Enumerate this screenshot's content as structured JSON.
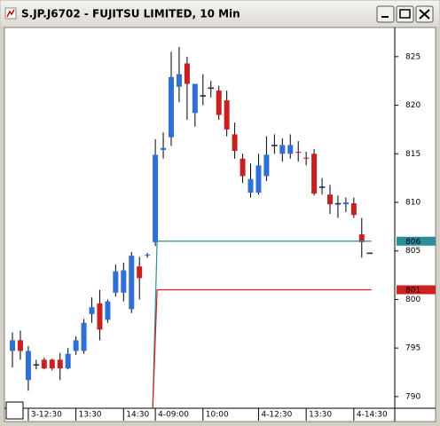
{
  "chart_data": {
    "type": "candlestick",
    "title": "S.JP.J6702 - FUJITSU LIMITED, 10 Min",
    "categories": [
      null,
      null,
      "3-12:30",
      null,
      null,
      null,
      null,
      null,
      "13:30",
      null,
      null,
      null,
      null,
      null,
      "14:30",
      null,
      null,
      null,
      "4-09:00",
      null,
      null,
      null,
      null,
      null,
      "10:00",
      null,
      null,
      null,
      null,
      null,
      null,
      "4-12:30",
      null,
      null,
      null,
      null,
      null,
      "13:30",
      null,
      null,
      null,
      null,
      null,
      "4-14:30",
      null,
      null
    ],
    "open": [
      794.7,
      795.8,
      791.7,
      793.3,
      793.8,
      793.8,
      793.8,
      792.9,
      794.7,
      794.7,
      798.5,
      799.6,
      797.9,
      800.7,
      800.7,
      799.0,
      803.4,
      804.5,
      805.9,
      815.4,
      816.7,
      821.9,
      824.3,
      819.2,
      821.0,
      821.8,
      821.5,
      820.5,
      817.0,
      814.5,
      811.0,
      811.0,
      812.7,
      815.9,
      815.0,
      815.0,
      815.2,
      814.6,
      815.0,
      811.6,
      810.8,
      809.9,
      809.8,
      809.9,
      806.7,
      804.8
    ],
    "high": [
      796.6,
      796.8,
      795.2,
      793.8,
      794.0,
      793.9,
      794.5,
      795.0,
      796.2,
      798.0,
      800.2,
      801.0,
      800.0,
      803.6,
      803.8,
      804.9,
      804.4,
      804.8,
      816.5,
      817.2,
      825.5,
      826.0,
      825.0,
      822.2,
      823.2,
      822.5,
      822.0,
      821.5,
      818.2,
      815.0,
      814.0,
      815.0,
      816.8,
      817.0,
      816.6,
      817.0,
      816.3,
      815.2,
      815.5,
      812.5,
      811.8,
      810.7,
      810.5,
      810.5,
      808.4,
      804.8
    ],
    "low": [
      793.0,
      793.8,
      790.6,
      792.8,
      792.8,
      792.7,
      791.7,
      792.8,
      794.3,
      794.4,
      797.6,
      795.8,
      797.6,
      800.3,
      799.8,
      798.6,
      800.0,
      804.3,
      805.5,
      814.5,
      815.8,
      820.3,
      818.5,
      817.8,
      820.0,
      820.8,
      818.5,
      816.8,
      814.5,
      812.0,
      810.5,
      810.8,
      812.2,
      815.0,
      814.2,
      814.5,
      814.2,
      813.8,
      810.7,
      810.8,
      808.8,
      808.4,
      809.0,
      808.4,
      804.3,
      804.8
    ],
    "close": [
      795.8,
      794.7,
      794.7,
      793.3,
      792.9,
      792.9,
      792.9,
      794.4,
      795.8,
      797.6,
      799.2,
      796.9,
      799.8,
      802.9,
      803.0,
      804.5,
      802.2,
      804.6,
      814.9,
      815.6,
      822.9,
      823.2,
      822.2,
      822.2,
      821.0,
      821.8,
      819.0,
      817.5,
      815.3,
      812.7,
      812.4,
      813.8,
      814.9,
      815.9,
      815.9,
      815.9,
      815.1,
      814.5,
      810.9,
      811.6,
      809.8,
      809.9,
      810.0,
      808.7,
      805.9,
      804.8
    ],
    "up_color": "#2f6fd6",
    "down_color": "#c82020",
    "lines": [
      {
        "color": "#2a8f9a",
        "values": [
          null,
          null,
          null,
          null,
          null,
          null,
          null,
          null,
          null,
          null,
          null,
          null,
          null,
          null,
          null,
          null,
          null,
          null,
          806,
          806,
          806,
          806,
          806,
          806,
          806,
          806,
          806,
          806,
          806,
          806,
          806,
          806,
          806,
          806,
          806,
          806,
          806,
          806,
          806,
          806,
          806,
          806,
          806,
          806,
          806,
          806
        ]
      },
      {
        "color": "#d02020",
        "values": [
          null,
          null,
          null,
          null,
          null,
          null,
          null,
          null,
          null,
          null,
          null,
          null,
          null,
          null,
          null,
          null,
          null,
          null,
          801,
          801,
          801,
          801,
          801,
          801,
          801,
          801,
          801,
          801,
          801,
          801,
          801,
          801,
          801,
          801,
          801,
          801,
          801,
          801,
          801,
          801,
          801,
          801,
          801,
          801,
          801,
          801
        ]
      }
    ],
    "ylim": [
      788.8,
      828
    ],
    "yticks": [
      790,
      795,
      800,
      805,
      810,
      815,
      820,
      825
    ],
    "grid": false
  }
}
